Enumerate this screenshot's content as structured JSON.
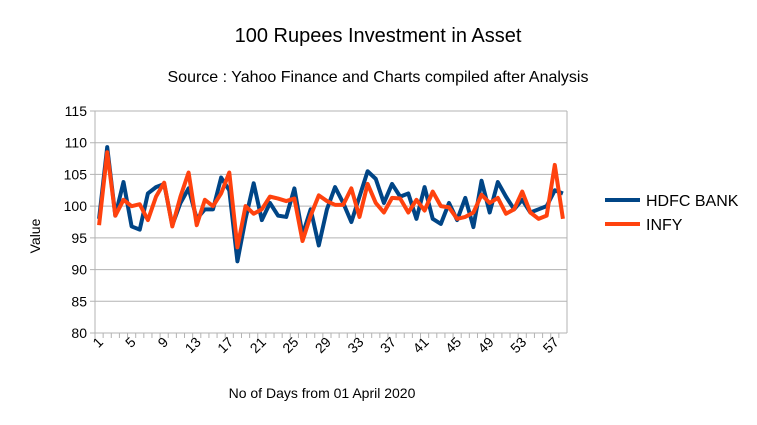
{
  "chart_data": {
    "type": "line",
    "title": "100 Rupees Investment in Asset",
    "subtitle": "Source : Yahoo Finance and Charts compiled after Analysis",
    "x_label": "No of Days from 01 April 2020",
    "y_label": "Value",
    "categories": [
      1,
      null,
      null,
      null,
      5,
      null,
      null,
      null,
      9,
      null,
      null,
      null,
      13,
      null,
      null,
      null,
      17,
      null,
      null,
      null,
      21,
      null,
      null,
      null,
      25,
      null,
      null,
      null,
      29,
      null,
      null,
      null,
      33,
      null,
      null,
      null,
      37,
      null,
      null,
      null,
      41,
      null,
      null,
      null,
      45,
      null,
      null,
      null,
      49,
      null,
      null,
      null,
      53,
      null,
      null,
      null,
      57,
      null
    ],
    "series": [
      {
        "name": "HDFC BANK",
        "color": "#004586",
        "values": [
          98,
          109.3,
          98.5,
          103.8,
          96.8,
          96.3,
          102,
          103,
          103.5,
          97,
          100.5,
          102.8,
          98,
          99.5,
          99.5,
          104.5,
          102.5,
          91.3,
          98,
          103.6,
          97.8,
          100.5,
          98.5,
          98.3,
          102.8,
          95.5,
          99.5,
          93.8,
          99.5,
          103,
          100.5,
          97.5,
          101.5,
          105.5,
          104.3,
          100.5,
          103.5,
          101.5,
          102,
          98,
          103,
          98,
          97.2,
          100.5,
          97.8,
          101.3,
          96.7,
          104,
          99,
          103.8,
          101.5,
          99.5,
          101,
          99,
          99.5,
          100,
          102.5,
          102
        ]
      },
      {
        "name": "INFY",
        "color": "#ff420e",
        "values": [
          97,
          108.5,
          98.5,
          101,
          100,
          100.3,
          97.8,
          101.5,
          103.7,
          96.8,
          101.5,
          105.3,
          97,
          101,
          100,
          102,
          105.3,
          93.5,
          100,
          98.8,
          99.5,
          101.5,
          101.2,
          100.8,
          101.2,
          94.5,
          98.5,
          101.7,
          100.8,
          100.2,
          100.2,
          102.8,
          98.3,
          103.5,
          100.5,
          99,
          101.3,
          101.2,
          99,
          101,
          99.3,
          102.3,
          100,
          99.8,
          98,
          98.3,
          99,
          101.8,
          100.5,
          101.3,
          98.8,
          99.5,
          102.3,
          99,
          98,
          98.5,
          106.5,
          98
        ]
      }
    ],
    "ylim": [
      80,
      115
    ],
    "yticks": [
      80,
      85,
      90,
      95,
      100,
      105,
      110,
      115
    ],
    "grid": true,
    "legend": "right"
  }
}
